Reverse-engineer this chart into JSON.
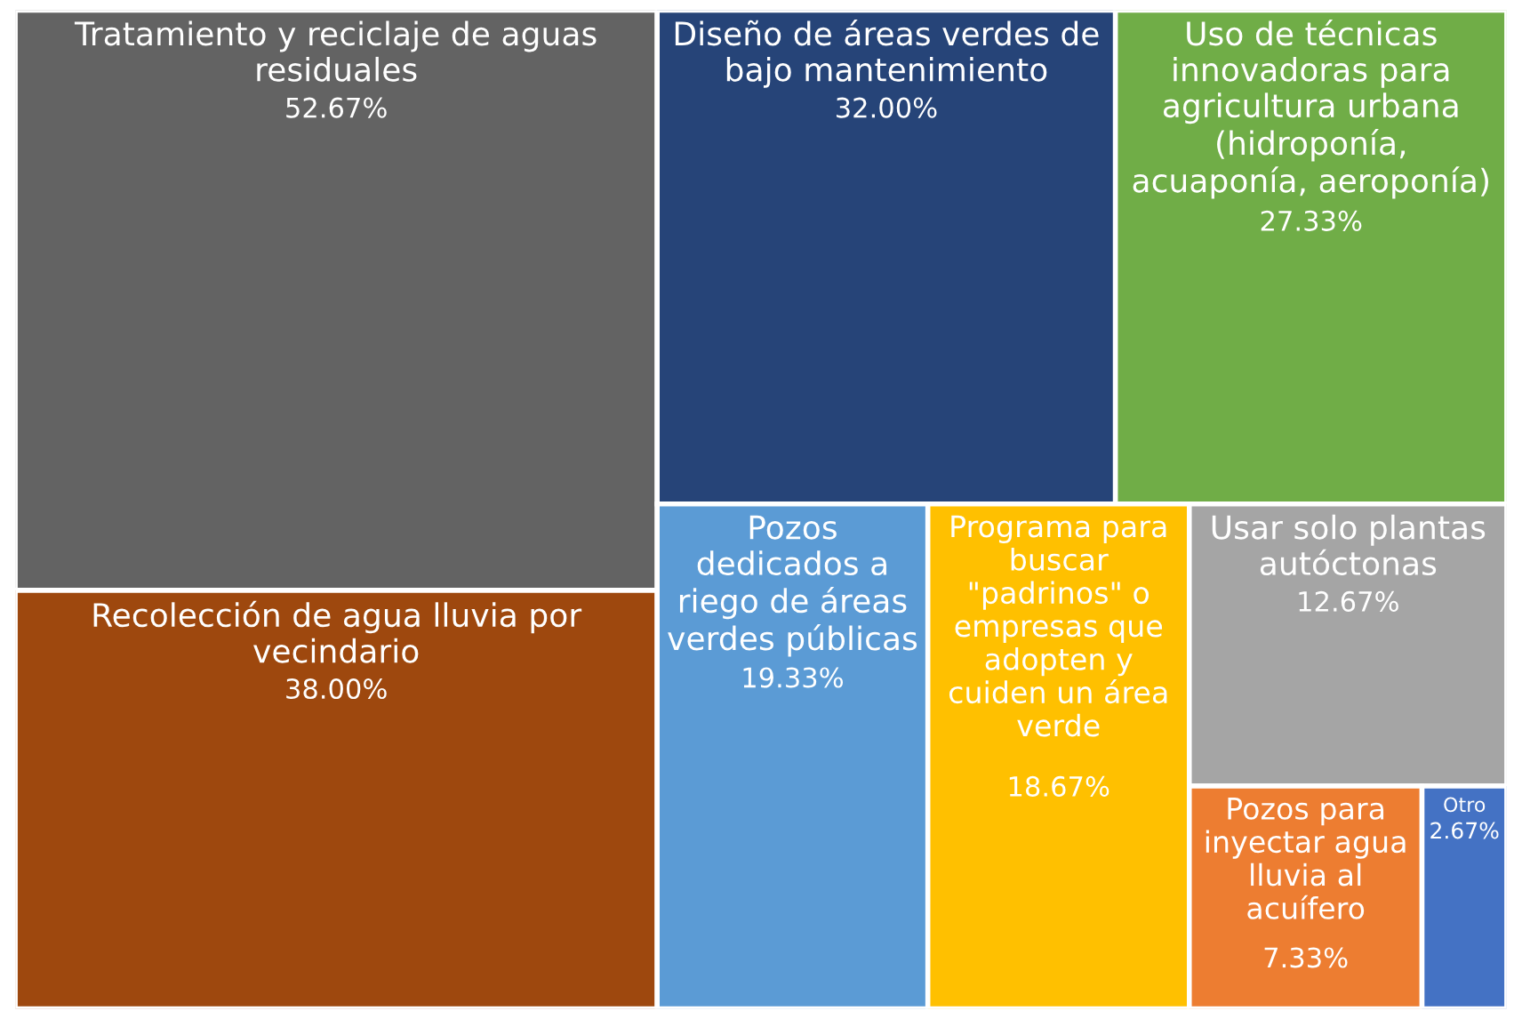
{
  "chart_data": {
    "type": "other",
    "categories": [
      "Tratamiento y reciclaje de aguas residuales",
      "Recolección de agua lluvia por vecindario",
      "Diseño de áreas verdes de bajo mantenimiento",
      "Uso de técnicas innovadoras para agricultura urbana (hidroponía, acuaponía, aeroponía)",
      "Pozos dedicados a riego de áreas verdes públicas",
      "Programa para buscar \"padrinos\" o empresas que adopten y cuiden un área verde",
      "Usar solo plantas autóctonas",
      "Pozos para inyectar agua lluvia al acuífero",
      "Otro"
    ],
    "values": [
      52.67,
      38.0,
      32.0,
      27.33,
      19.33,
      18.67,
      12.67,
      7.33,
      2.67
    ],
    "value_labels": [
      "52.67%",
      "38.00%",
      "32.00%",
      "27.33%",
      "19.33%",
      "18.67%",
      "12.67%",
      "7.33%",
      "2.67%"
    ],
    "colors": [
      "#636363",
      "#9e480e",
      "#264478",
      "#70ad47",
      "#5b9bd5",
      "#ffc000",
      "#a5a5a5",
      "#ed7d31",
      "#4472c4"
    ]
  }
}
